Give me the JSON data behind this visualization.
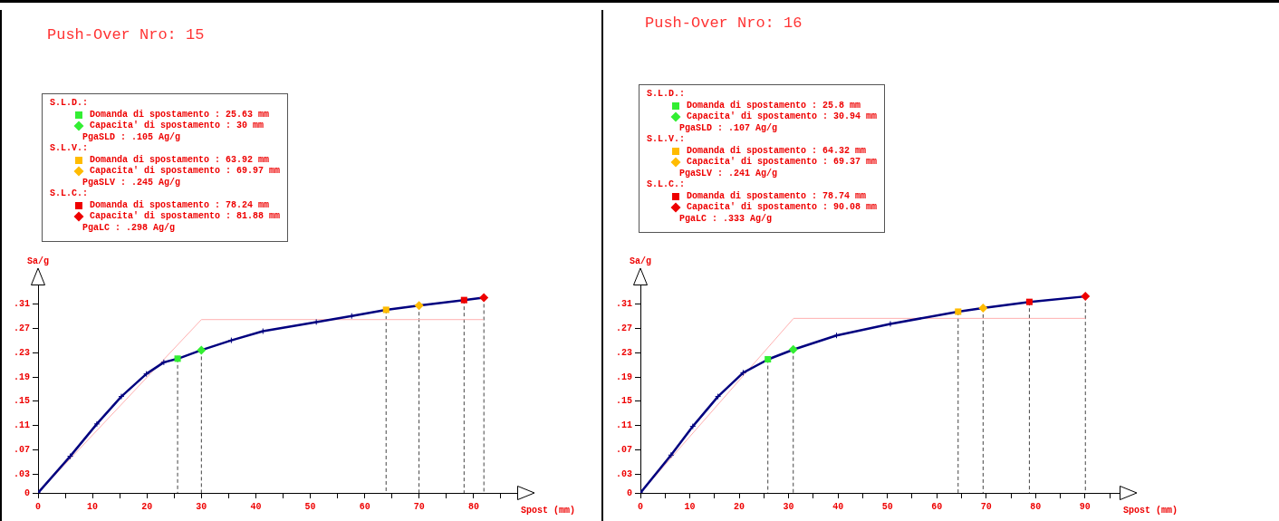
{
  "chart_data": [
    {
      "type": "line",
      "title": "Push-Over Nro: 15",
      "xlabel": "Spost (mm)",
      "ylabel": "Sa/g",
      "legend": "top left",
      "grid": false,
      "xlim": [
        0,
        88
      ],
      "xticks": [
        0,
        {
          "value": 5,
          "label": null
        },
        10,
        {
          "value": 15,
          "label": null
        },
        20,
        {
          "value": 25,
          "label": null
        },
        30,
        {
          "value": 35,
          "label": null
        },
        40,
        {
          "value": 45,
          "label": null
        },
        50,
        {
          "value": 55,
          "label": null
        },
        60,
        {
          "value": 65,
          "label": null
        },
        70,
        {
          "value": 75,
          "label": null
        },
        80,
        {
          "value": 85,
          "label": null
        }
      ],
      "ylim": [
        0,
        0.34
      ],
      "yticks": [
        {
          "value": 0,
          "label": "0"
        },
        {
          "value": 0.03,
          "label": ".03"
        },
        {
          "value": 0.07,
          "label": ".07"
        },
        {
          "value": 0.11,
          "label": ".11"
        },
        {
          "value": 0.15,
          "label": ".15"
        },
        {
          "value": 0.19,
          "label": ".19"
        },
        {
          "value": 0.23,
          "label": ".23"
        },
        {
          "value": 0.27,
          "label": ".27"
        },
        {
          "value": 0.31,
          "label": ".31"
        }
      ],
      "ref_lines": [
        {
          "axis": "x",
          "value": 25.63,
          "color": "#444444",
          "line_style": "dashed"
        },
        {
          "axis": "x",
          "value": 30,
          "color": "#444444",
          "line_style": "dashed"
        },
        {
          "axis": "x",
          "value": 63.92,
          "color": "#444444",
          "line_style": "dashed"
        },
        {
          "axis": "x",
          "value": 69.97,
          "color": "#444444",
          "line_style": "dashed"
        },
        {
          "axis": "x",
          "value": 78.24,
          "color": "#444444",
          "line_style": "dashed"
        },
        {
          "axis": "x",
          "value": 81.88,
          "color": "#444444",
          "line_style": "dashed"
        }
      ],
      "annotations": [
        "S.L.D.:",
        "PgaSLD :  .105 Ag/g",
        "S.L.V.:",
        "PgaSLV :  .245 Ag/g",
        "S.L.C.:",
        "PgaLC :  .298 Ag/g"
      ],
      "series": [
        {
          "type": "line",
          "color": "#00007f",
          "marker": "cross",
          "x": [
            0,
            5.9,
            10.8,
            15.3,
            19.9,
            23.1,
            25.7,
            30,
            35.5,
            41.3,
            51.1,
            57.6,
            63.9,
            69.9,
            78.2,
            81.8
          ],
          "values": [
            0,
            0.06,
            0.113,
            0.158,
            0.195,
            0.214,
            0.22,
            0.234,
            0.25,
            0.265,
            0.28,
            0.29,
            0.3,
            0.307,
            0.316,
            0.32
          ]
        },
        {
          "type": "line",
          "color": "#ffb0b0",
          "marker": "none",
          "x": [
            0,
            30,
            81.8
          ],
          "values": [
            0,
            0.284,
            0.284
          ]
        },
        {
          "type": "scatter",
          "name": "Domanda di spostamento : 25.63 mm",
          "color": "#33ee33",
          "marker": "square",
          "x": [
            25.63
          ],
          "values": [
            0.22
          ]
        },
        {
          "type": "scatter",
          "name": "Capacita' di spostamento : 30 mm",
          "color": "#33ee33",
          "marker": "diamond",
          "x": [
            30
          ],
          "values": [
            0.234
          ]
        },
        {
          "type": "scatter",
          "name": "Domanda di spostamento : 63.92 mm",
          "color": "#ffbb00",
          "marker": "square",
          "x": [
            63.92
          ],
          "values": [
            0.3
          ]
        },
        {
          "type": "scatter",
          "name": "Capacita' di spostamento : 69.97 mm",
          "color": "#ffbb00",
          "marker": "diamond",
          "x": [
            69.97
          ],
          "values": [
            0.307
          ]
        },
        {
          "type": "scatter",
          "name": "Domanda di spostamento : 78.24 mm",
          "color": "#ee0000",
          "marker": "square",
          "x": [
            78.24
          ],
          "values": [
            0.316
          ]
        },
        {
          "type": "scatter",
          "name": "Capacita' di spostamento : 81.88 mm",
          "color": "#ee0000",
          "marker": "diamond",
          "x": [
            81.88
          ],
          "values": [
            0.32
          ]
        }
      ]
    },
    {
      "type": "line",
      "title": "Push-Over Nro: 16",
      "xlabel": "Spost (mm)",
      "ylabel": "Sa/g",
      "legend": "top left",
      "grid": false,
      "xlim": [
        0,
        97
      ],
      "xticks": [
        0,
        {
          "value": 5,
          "label": null
        },
        10,
        {
          "value": 15,
          "label": null
        },
        20,
        {
          "value": 25,
          "label": null
        },
        30,
        {
          "value": 35,
          "label": null
        },
        40,
        {
          "value": 45,
          "label": null
        },
        50,
        {
          "value": 55,
          "label": null
        },
        60,
        {
          "value": 65,
          "label": null
        },
        70,
        {
          "value": 75,
          "label": null
        },
        80,
        {
          "value": 85,
          "label": null
        },
        90,
        {
          "value": 95,
          "label": null
        }
      ],
      "ylim": [
        0,
        0.34
      ],
      "yticks": [
        {
          "value": 0,
          "label": "0"
        },
        {
          "value": 0.03,
          "label": ".03"
        },
        {
          "value": 0.07,
          "label": ".07"
        },
        {
          "value": 0.11,
          "label": ".11"
        },
        {
          "value": 0.15,
          "label": ".15"
        },
        {
          "value": 0.19,
          "label": ".19"
        },
        {
          "value": 0.23,
          "label": ".23"
        },
        {
          "value": 0.27,
          "label": ".27"
        },
        {
          "value": 0.31,
          "label": ".31"
        }
      ],
      "ref_lines": [
        {
          "axis": "x",
          "value": 25.8,
          "color": "#444444",
          "line_style": "dashed"
        },
        {
          "axis": "x",
          "value": 30.94,
          "color": "#444444",
          "line_style": "dashed"
        },
        {
          "axis": "x",
          "value": 64.32,
          "color": "#444444",
          "line_style": "dashed"
        },
        {
          "axis": "x",
          "value": 69.37,
          "color": "#444444",
          "line_style": "dashed"
        },
        {
          "axis": "x",
          "value": 78.74,
          "color": "#444444",
          "line_style": "dashed"
        },
        {
          "axis": "x",
          "value": 90.08,
          "color": "#444444",
          "line_style": "dashed"
        }
      ],
      "annotations": [
        "S.L.D.:",
        "PgaSLD :  .107 Ag/g",
        "S.L.V.:",
        "PgaSLV :  .241 Ag/g",
        "S.L.C.:",
        "PgaLC :  .333 Ag/g"
      ],
      "series": [
        {
          "type": "line",
          "color": "#00007f",
          "marker": "cross",
          "x": [
            0,
            6.2,
            10.6,
            15.7,
            20.8,
            25.9,
            31.0,
            39.7,
            50.6,
            64.3,
            69.3,
            78.8,
            90.1
          ],
          "values": [
            0,
            0.062,
            0.109,
            0.158,
            0.197,
            0.219,
            0.235,
            0.258,
            0.277,
            0.297,
            0.303,
            0.313,
            0.322
          ]
        },
        {
          "type": "line",
          "color": "#ffb0b0",
          "marker": "none",
          "x": [
            0,
            31,
            90.1
          ],
          "values": [
            0,
            0.286,
            0.286
          ]
        },
        {
          "type": "scatter",
          "name": "Domanda di spostamento : 25.8 mm",
          "color": "#33ee33",
          "marker": "square",
          "x": [
            25.8
          ],
          "values": [
            0.219
          ]
        },
        {
          "type": "scatter",
          "name": "Capacita' di spostamento : 30.94 mm",
          "color": "#33ee33",
          "marker": "diamond",
          "x": [
            30.94
          ],
          "values": [
            0.235
          ]
        },
        {
          "type": "scatter",
          "name": "Domanda di spostamento : 64.32 mm",
          "color": "#ffbb00",
          "marker": "square",
          "x": [
            64.32
          ],
          "values": [
            0.297
          ]
        },
        {
          "type": "scatter",
          "name": "Capacita' di spostamento : 69.37 mm",
          "color": "#ffbb00",
          "marker": "diamond",
          "x": [
            69.37
          ],
          "values": [
            0.303
          ]
        },
        {
          "type": "scatter",
          "name": "Domanda di spostamento : 78.74 mm",
          "color": "#ee0000",
          "marker": "square",
          "x": [
            78.74
          ],
          "values": [
            0.313
          ]
        },
        {
          "type": "scatter",
          "name": "Capacita' di spostamento : 90.08 mm",
          "color": "#ee0000",
          "marker": "diamond",
          "x": [
            90.08
          ],
          "values": [
            0.322
          ]
        }
      ]
    }
  ]
}
